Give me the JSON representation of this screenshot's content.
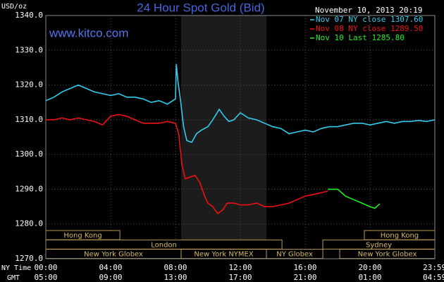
{
  "chart_data": {
    "type": "line",
    "title": "24 Hour Spot Gold (Bid)",
    "watermark": "www.kitco.com",
    "ylabel": "USD/oz",
    "timestamp": "November 10, 2013 20:19",
    "xlabel": "NY Time",
    "x2label": "GMT",
    "background": "#000000",
    "grid": true,
    "legend": "upper right",
    "xlim": [
      0,
      24
    ],
    "ylim": [
      1270,
      1340
    ],
    "yticks": [
      {
        "value": 1270,
        "label": "1270.0"
      },
      {
        "value": 1280,
        "label": "1280.0"
      },
      {
        "value": 1290,
        "label": "1290.0"
      },
      {
        "value": 1300,
        "label": "1300.0"
      },
      {
        "value": 1310,
        "label": "1310.0"
      },
      {
        "value": 1320,
        "label": "1320.0"
      },
      {
        "value": 1330,
        "label": "1330.0"
      },
      {
        "value": 1340,
        "label": "1340.0"
      }
    ],
    "xticks": [
      {
        "value": 0,
        "label": "00:00"
      },
      {
        "value": 4,
        "label": "04:00"
      },
      {
        "value": 8,
        "label": "08:00"
      },
      {
        "value": 12,
        "label": "12:00"
      },
      {
        "value": 16,
        "label": "16:00"
      },
      {
        "value": 20,
        "label": "20:00"
      },
      {
        "value": 23.983,
        "label": "23:59"
      }
    ],
    "x2ticks": [
      {
        "value": 0,
        "label": "05:00"
      },
      {
        "value": 4,
        "label": "09:00"
      },
      {
        "value": 8,
        "label": "13:00"
      },
      {
        "value": 12,
        "label": "17:00"
      },
      {
        "value": 16,
        "label": "21:00"
      },
      {
        "value": 20,
        "label": "01:00"
      },
      {
        "value": 23.983,
        "label": "04:59"
      }
    ],
    "sessions": [
      {
        "label": "Hong Kong",
        "row": 0,
        "start": 0,
        "end": 4.57
      },
      {
        "label": "Hong Kong",
        "row": 0,
        "start": 19.65,
        "end": 24
      },
      {
        "label": "London",
        "row": 1,
        "start": 0,
        "end": 14.57
      },
      {
        "label": "Sydney",
        "row": 1,
        "start": 17.09,
        "end": 24
      },
      {
        "label": "New York Globex",
        "row": 2,
        "start": 0,
        "end": 8.35
      },
      {
        "label": "New York NYMEX",
        "row": 2,
        "start": 8.35,
        "end": 13.61,
        "highlight": true
      },
      {
        "label": "NY Globex",
        "row": 2,
        "start": 13.61,
        "end": 17.09
      },
      {
        "label": "New York Globex",
        "row": 2,
        "start": 18.13,
        "end": 24
      }
    ],
    "series": [
      {
        "name": "Nov 07 NY close 1307.60",
        "color": "#33ccee",
        "x": [
          0,
          0.5,
          1,
          1.5,
          2,
          2.5,
          3,
          3.5,
          4,
          4.5,
          5,
          5.5,
          6,
          6.5,
          7,
          7.5,
          8,
          8.05,
          8.15,
          8.3,
          8.5,
          8.7,
          9,
          9.3,
          9.6,
          10,
          10.3,
          10.7,
          11,
          11.3,
          11.6,
          12,
          12.5,
          13,
          13.5,
          14,
          14.5,
          15,
          15.5,
          16,
          16.5,
          17,
          17.5,
          18,
          18.5,
          19,
          19.5,
          20,
          20.5,
          21,
          21.5,
          22,
          22.5,
          23,
          23.5,
          24
        ],
        "values": [
          1315.5,
          1316.5,
          1318,
          1319,
          1320,
          1319,
          1318,
          1317.5,
          1317,
          1317.5,
          1316.5,
          1316.5,
          1316,
          1315,
          1315.5,
          1314.5,
          1316,
          1326,
          1321,
          1316,
          1308,
          1304,
          1303.5,
          1306,
          1307,
          1308,
          1310,
          1313,
          1311,
          1309.5,
          1310,
          1312,
          1310.5,
          1310,
          1309,
          1308,
          1307.5,
          1306,
          1306.5,
          1307,
          1306.5,
          1307.5,
          1308,
          1308,
          1308.5,
          1309,
          1309,
          1308.5,
          1309,
          1309.5,
          1309,
          1309.5,
          1309.5,
          1309.8,
          1309.5,
          1310
        ]
      },
      {
        "name": "Nov 08 NY close 1289.50",
        "color": "#ee1111",
        "x": [
          0,
          0.5,
          1,
          1.5,
          2,
          2.5,
          3,
          3.5,
          4,
          4.5,
          5,
          5.5,
          6,
          6.5,
          7,
          7.5,
          8,
          8.2,
          8.4,
          8.6,
          8.9,
          9.2,
          9.5,
          9.8,
          10,
          10.3,
          10.6,
          10.9,
          11.2,
          11.6,
          12,
          12.5,
          13,
          13.5,
          14,
          14.5,
          15,
          15.5,
          16,
          16.5,
          17,
          17.4
        ],
        "values": [
          1310,
          1310,
          1310.5,
          1310,
          1310.5,
          1310,
          1309.5,
          1308.5,
          1311,
          1311.5,
          1311,
          1310,
          1309,
          1309,
          1309,
          1309.5,
          1309,
          1306,
          1297,
          1293,
          1293.5,
          1294,
          1292,
          1288,
          1286,
          1285,
          1283,
          1284,
          1286,
          1286,
          1285.5,
          1285.5,
          1286,
          1285,
          1285,
          1285.5,
          1286,
          1287,
          1288,
          1288.5,
          1289,
          1289.5
        ]
      },
      {
        "name": "Nov 10 Last 1285.80",
        "color": "#22ee22",
        "x": [
          17.4,
          18,
          18.5,
          19,
          19.5,
          20,
          20.3,
          20.6
        ],
        "values": [
          1290,
          1290,
          1288,
          1287,
          1286,
          1285,
          1284.5,
          1285.8
        ]
      }
    ]
  }
}
